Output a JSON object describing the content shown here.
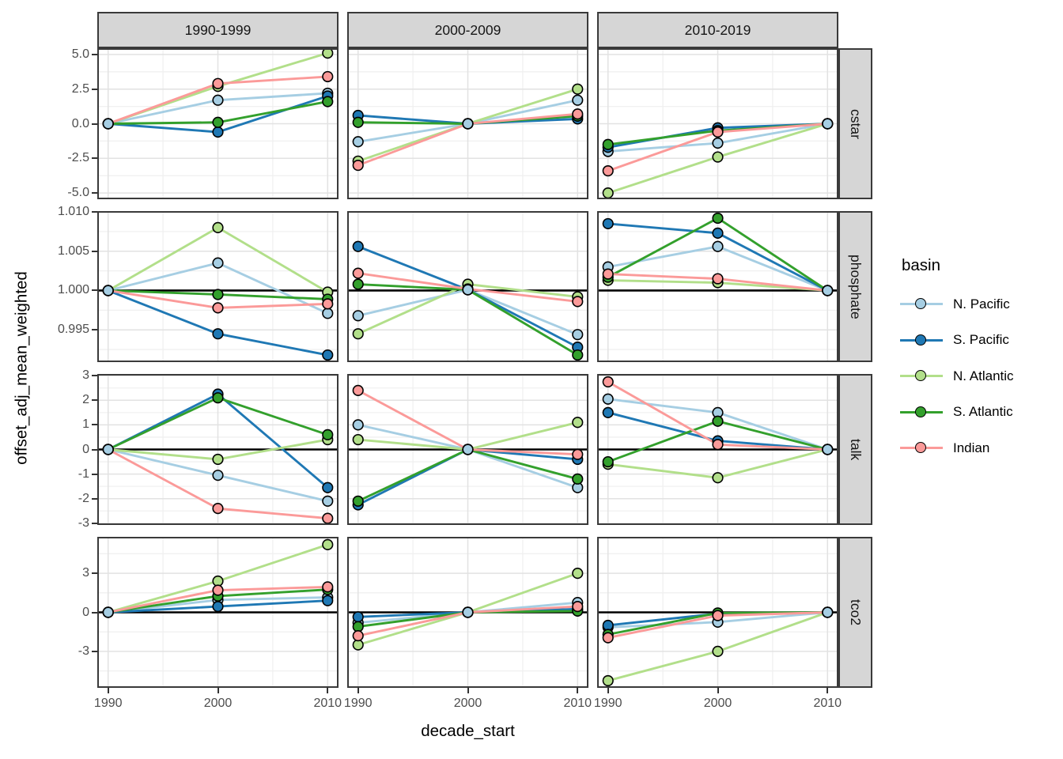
{
  "chart_data": {
    "type": "line",
    "xlabel": "decade_start",
    "ylabel": "offset_adj_mean_weighted",
    "x": [
      1990,
      2000,
      2010
    ],
    "xtick_labels": [
      "1990",
      "2000",
      "2010"
    ],
    "facet_columns": [
      "1990-1999",
      "2000-2009",
      "2010-2019"
    ],
    "facet_rows": [
      {
        "label": "cstar",
        "ylim": [
          -5.45,
          5.45
        ],
        "yticks": [
          5.0,
          2.5,
          0.0,
          -2.5,
          -5.0
        ],
        "ytick_labels": [
          "5.0",
          "2.5",
          "0.0",
          "-2.5",
          "-5.0"
        ],
        "ref_line": null
      },
      {
        "label": "phosphate",
        "ylim": [
          0.9909,
          1.0101
        ],
        "yticks": [
          1.01,
          1.005,
          1.0,
          0.995
        ],
        "ytick_labels": [
          "1.010",
          "1.005",
          "1.000",
          "0.995"
        ],
        "ref_line": 1.0
      },
      {
        "label": "talk",
        "ylim": [
          -3.07,
          3.07
        ],
        "yticks": [
          3,
          2,
          1,
          0,
          -1,
          -2,
          -3
        ],
        "ytick_labels": [
          "3",
          "2",
          "1",
          "0",
          "-1",
          "-2",
          "-3"
        ],
        "ref_line": 0
      },
      {
        "label": "tco2",
        "ylim": [
          -5.8,
          5.8
        ],
        "yticks": [
          3,
          0,
          -3
        ],
        "ytick_labels": [
          "3",
          "0",
          "-3"
        ],
        "ref_line": 0
      }
    ],
    "legend": {
      "title": "basin",
      "position": "right"
    },
    "series": [
      {
        "name": "N. Pacific",
        "color": "#a6cee3"
      },
      {
        "name": "S. Pacific",
        "color": "#1f78b4"
      },
      {
        "name": "N. Atlantic",
        "color": "#b2df8a"
      },
      {
        "name": "S. Atlantic",
        "color": "#33a02c"
      },
      {
        "name": "Indian",
        "color": "#fb9a99"
      }
    ],
    "values": {
      "cstar": [
        {
          "N. Pacific": [
            0,
            1.7,
            2.2
          ],
          "S. Pacific": [
            0,
            -0.6,
            2.0
          ],
          "N. Atlantic": [
            0,
            2.7,
            5.1
          ],
          "S. Atlantic": [
            0,
            0.1,
            1.6
          ],
          "Indian": [
            0,
            2.9,
            3.4
          ]
        },
        {
          "N. Pacific": [
            -1.3,
            0,
            1.7
          ],
          "S. Pacific": [
            0.6,
            0,
            0.35
          ],
          "N. Atlantic": [
            -2.7,
            0,
            2.5
          ],
          "S. Atlantic": [
            0.1,
            0,
            0.55
          ],
          "Indian": [
            -3.0,
            0,
            0.7
          ]
        },
        {
          "N. Pacific": [
            -2.0,
            -1.4,
            0
          ],
          "S. Pacific": [
            -1.7,
            -0.3,
            0
          ],
          "N. Atlantic": [
            -5.0,
            -2.4,
            0
          ],
          "S. Atlantic": [
            -1.5,
            -0.5,
            0
          ],
          "Indian": [
            -3.4,
            -0.6,
            0
          ]
        }
      ],
      "phosphate": [
        {
          "N. Pacific": [
            1.0,
            1.0035,
            0.9971
          ],
          "S. Pacific": [
            1.0,
            0.9945,
            0.9918
          ],
          "N. Atlantic": [
            1.0,
            1.008,
            0.9998
          ],
          "S. Atlantic": [
            1.0,
            0.9995,
            0.9989
          ],
          "Indian": [
            1.0,
            0.9978,
            0.9983
          ]
        },
        {
          "N. Pacific": [
            0.9968,
            1.0001,
            0.9944
          ],
          "S. Pacific": [
            1.0056,
            1.0001,
            0.9928
          ],
          "N. Atlantic": [
            0.9945,
            1.0008,
            0.9992
          ],
          "S. Atlantic": [
            1.0008,
            1.0001,
            0.9918
          ],
          "Indian": [
            1.0022,
            1.0002,
            0.9986
          ]
        },
        {
          "N. Pacific": [
            1.003,
            1.0056,
            1.0
          ],
          "S. Pacific": [
            1.0085,
            1.0073,
            1.0
          ],
          "N. Atlantic": [
            1.0013,
            1.001,
            1.0
          ],
          "S. Atlantic": [
            1.0017,
            1.0092,
            1.0
          ],
          "Indian": [
            1.0021,
            1.0015,
            1.0
          ]
        }
      ],
      "talk": [
        {
          "N. Pacific": [
            0,
            -1.05,
            -2.1
          ],
          "S. Pacific": [
            0,
            2.25,
            -1.55
          ],
          "N. Atlantic": [
            0,
            -0.4,
            0.4
          ],
          "S. Atlantic": [
            0,
            2.1,
            0.6
          ],
          "Indian": [
            0,
            -2.4,
            -2.8
          ]
        },
        {
          "N. Pacific": [
            1.0,
            0,
            -1.55
          ],
          "S. Pacific": [
            -2.25,
            0,
            -0.4
          ],
          "N. Atlantic": [
            0.4,
            0,
            1.1
          ],
          "S. Atlantic": [
            -2.1,
            0,
            -1.2
          ],
          "Indian": [
            2.4,
            0,
            -0.2
          ]
        },
        {
          "N. Pacific": [
            2.05,
            1.5,
            0
          ],
          "S. Pacific": [
            1.5,
            0.35,
            0
          ],
          "N. Atlantic": [
            -0.6,
            -1.15,
            0
          ],
          "S. Atlantic": [
            -0.5,
            1.15,
            0
          ],
          "Indian": [
            2.75,
            0.2,
            0
          ]
        }
      ],
      "tco2": [
        {
          "N. Pacific": [
            0,
            0.95,
            1.15
          ],
          "S. Pacific": [
            0,
            0.45,
            0.9
          ],
          "N. Atlantic": [
            0,
            2.4,
            5.2
          ],
          "S. Atlantic": [
            0,
            1.25,
            1.75
          ],
          "Indian": [
            0,
            1.7,
            1.95
          ]
        },
        {
          "N. Pacific": [
            -0.8,
            0,
            0.75
          ],
          "S. Pacific": [
            -0.35,
            0,
            0.25
          ],
          "N. Atlantic": [
            -2.5,
            0,
            3.0
          ],
          "S. Atlantic": [
            -1.1,
            0,
            0.1
          ],
          "Indian": [
            -1.8,
            0,
            0.45
          ]
        },
        {
          "N. Pacific": [
            -1.15,
            -0.75,
            0
          ],
          "S. Pacific": [
            -1.0,
            -0.1,
            0
          ],
          "N. Atlantic": [
            -5.25,
            -3.0,
            0
          ],
          "S. Atlantic": [
            -1.7,
            -0.05,
            0
          ],
          "Indian": [
            -1.95,
            -0.25,
            0
          ]
        }
      ]
    }
  }
}
